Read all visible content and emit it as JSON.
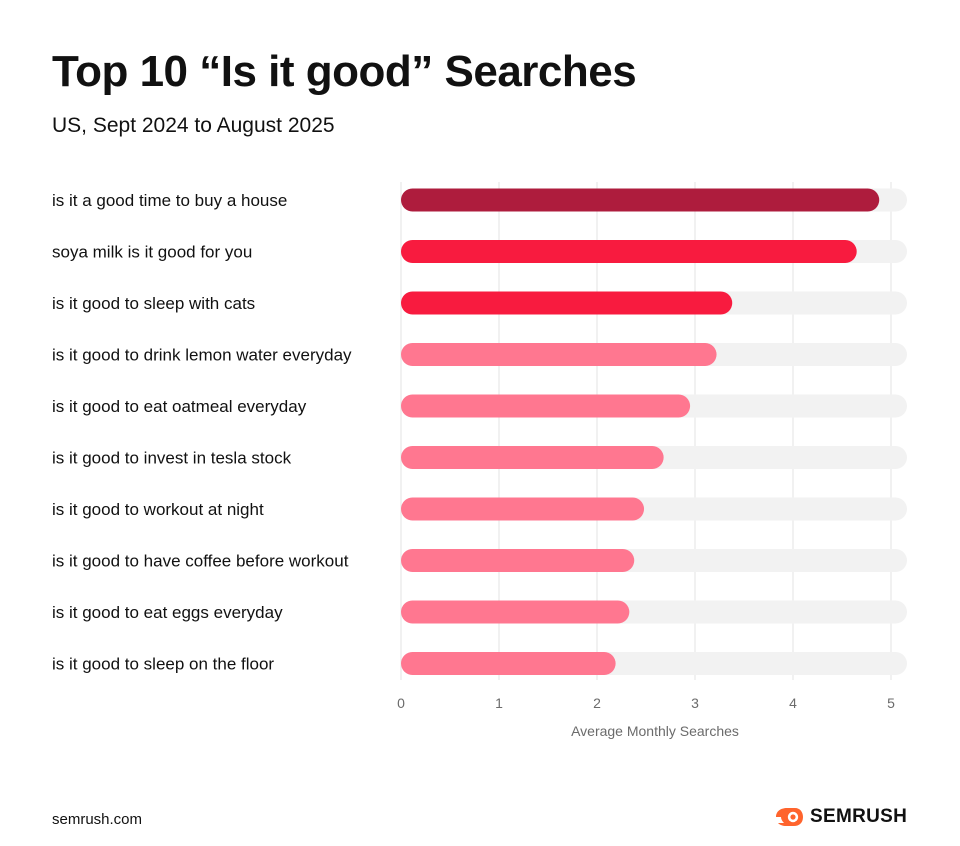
{
  "title": "Top 10 “Is it good” Searches",
  "subtitle": "US,  Sept 2024 to August 2025",
  "footer": {
    "site": "semrush.com",
    "brand": "SEMRUSH"
  },
  "colors": {
    "top": "#AE1C3D",
    "second_third": "#F81B3F",
    "rest": "#FF7790",
    "track": "#F2F2F2",
    "grid": "#E3E3E3",
    "logo": "#FF642D"
  },
  "chart_data": {
    "type": "bar",
    "orientation": "horizontal",
    "title": "Top 10 “Is it good” Searches",
    "subtitle": "US,  Sept 2024 to August 2025",
    "xlabel": "Average Monthly Searches",
    "ylabel": "",
    "xlim": [
      0,
      5
    ],
    "xticks": [
      "0",
      "1",
      "2",
      "3",
      "4",
      "5"
    ],
    "grid": true,
    "categories": [
      "is it a good time to buy a house",
      "soya milk is it good for you",
      "is it good to sleep with cats",
      "is it good to drink lemon water everyday",
      "is it good to eat oatmeal everyday",
      "is it good to invest in tesla stock",
      "is it good to workout at night",
      "is it good to have coffee before workout",
      "is it good to eat eggs everyday",
      "is it good to sleep on the floor"
    ],
    "values": [
      4.88,
      4.65,
      3.38,
      3.22,
      2.95,
      2.68,
      2.48,
      2.38,
      2.33,
      2.19
    ],
    "bar_colors": [
      "#AE1C3D",
      "#F81B3F",
      "#F81B3F",
      "#FF7790",
      "#FF7790",
      "#FF7790",
      "#FF7790",
      "#FF7790",
      "#FF7790",
      "#FF7790"
    ]
  }
}
